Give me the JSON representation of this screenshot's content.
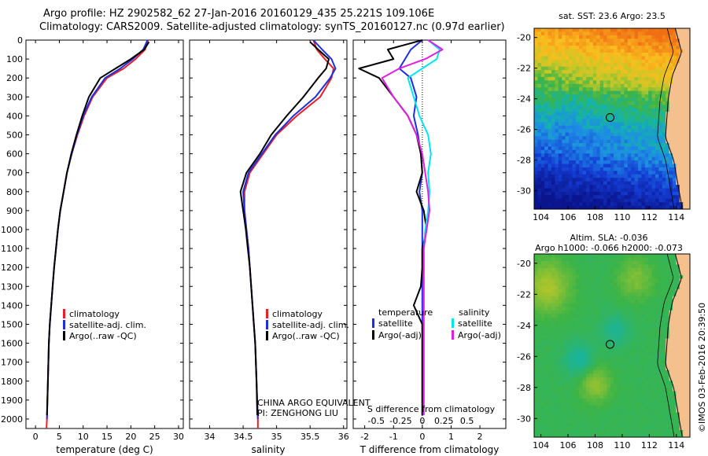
{
  "header": {
    "line1": "Argo profile: HZ 2902582_62 27-Jan-2016 20160129_435 25.221S 109.106E",
    "line2": "Climatology: CARS2009. Satellite-adjusted climatology: synTS_20160127.nc (0.97d earlier)"
  },
  "credits": {
    "line1": "CHINA ARGO EQUIVALENT",
    "line2": "PI: ZENGHONG LIU",
    "watermark": "©IMOS 03-Feb-2016 20:39:50"
  },
  "colors": {
    "climatology": "#e8202a",
    "satellite": "#1e2ee0",
    "argo": "#000000",
    "salinity_satellite": "#00e6f0",
    "salinity_argo": "#e020e0",
    "land": "#f4c08e"
  },
  "chart_data": [
    {
      "type": "line",
      "name": "temperature-profile",
      "xlabel": "temperature (deg C)",
      "ylabel": "",
      "xlim": [
        -2,
        31
      ],
      "ylim": [
        2050,
        0
      ],
      "xticks": [
        "0",
        "5",
        "10",
        "15",
        "20",
        "25",
        "30"
      ],
      "xtick_values": [
        0,
        5,
        10,
        15,
        20,
        25,
        30
      ],
      "yticks": [
        "0",
        "100",
        "200",
        "300",
        "400",
        "500",
        "600",
        "700",
        "800",
        "900",
        "1000",
        "1100",
        "1200",
        "1300",
        "1400",
        "1500",
        "1600",
        "1700",
        "1800",
        "1900",
        "2000"
      ],
      "ytick_values": [
        0,
        100,
        200,
        300,
        400,
        500,
        600,
        700,
        800,
        900,
        1000,
        1100,
        1200,
        1300,
        1400,
        1500,
        1600,
        1700,
        1800,
        1900,
        2000
      ],
      "legend": [
        "climatology",
        "satellite-adj. clim.",
        "Argo(..raw -QC)"
      ],
      "series": [
        {
          "name": "climatology",
          "color": "#e8202a",
          "x": [
            23.6,
            23.0,
            21.0,
            18.5,
            15.0,
            12.0,
            10.2,
            8.8,
            7.6,
            6.6,
            5.9,
            5.2,
            4.7,
            4.3,
            3.9,
            3.6,
            3.3,
            3.0,
            2.8,
            2.6,
            2.4,
            2.3
          ],
          "y": [
            0,
            50,
            100,
            150,
            200,
            300,
            400,
            500,
            600,
            700,
            800,
            900,
            1000,
            1100,
            1200,
            1300,
            1400,
            1500,
            1600,
            1800,
            2000,
            2050
          ]
        },
        {
          "name": "satellite-adj. clim.",
          "color": "#1e2ee0",
          "x": [
            23.5,
            22.6,
            20.4,
            17.8,
            14.6,
            11.8,
            10.0,
            8.7,
            7.6,
            6.6,
            5.9,
            5.2,
            4.7,
            4.3,
            3.9,
            3.6,
            3.3,
            3.0,
            2.8,
            2.6,
            2.4
          ],
          "y": [
            0,
            50,
            100,
            150,
            200,
            300,
            400,
            500,
            600,
            700,
            800,
            900,
            1000,
            1100,
            1200,
            1300,
            1400,
            1500,
            1600,
            1800,
            2000
          ]
        },
        {
          "name": "Argo(..raw -QC)",
          "color": "#000000",
          "x": [
            23.8,
            22.8,
            20.0,
            16.8,
            13.6,
            11.2,
            9.8,
            8.6,
            7.5,
            6.6,
            5.9,
            5.2,
            4.7,
            4.3,
            3.9,
            3.6,
            3.3,
            3.0,
            2.8,
            2.6,
            2.4
          ],
          "y": [
            10,
            50,
            100,
            150,
            200,
            300,
            400,
            500,
            600,
            700,
            800,
            900,
            1000,
            1100,
            1200,
            1300,
            1400,
            1500,
            1600,
            1800,
            1980
          ]
        }
      ]
    },
    {
      "type": "line",
      "name": "salinity-profile",
      "xlabel": "salinity",
      "ylabel": "",
      "xlim": [
        33.7,
        36.05
      ],
      "ylim": [
        2050,
        0
      ],
      "xticks": [
        "34",
        "34.5",
        "35",
        "35.5",
        "36"
      ],
      "xtick_values": [
        34,
        34.5,
        35,
        35.5,
        36
      ],
      "legend": [
        "climatology",
        "satellite-adj. clim.",
        "Argo(..raw -QC)"
      ],
      "series": [
        {
          "name": "climatology",
          "color": "#e8202a",
          "x": [
            35.55,
            35.6,
            35.72,
            35.85,
            35.82,
            35.65,
            35.3,
            35.0,
            34.8,
            34.6,
            34.52,
            34.52,
            34.55,
            34.58,
            34.6,
            34.62,
            34.64,
            34.66,
            34.68,
            34.7,
            34.72,
            34.72
          ],
          "y": [
            0,
            50,
            100,
            150,
            200,
            300,
            400,
            500,
            600,
            700,
            800,
            900,
            1000,
            1100,
            1200,
            1300,
            1400,
            1500,
            1600,
            1800,
            2000,
            2050
          ]
        },
        {
          "name": "satellite-adj. clim.",
          "color": "#1e2ee0",
          "x": [
            35.55,
            35.68,
            35.82,
            35.88,
            35.8,
            35.58,
            35.25,
            34.98,
            34.78,
            34.58,
            34.5,
            34.52,
            34.55,
            34.58,
            34.6,
            34.62,
            34.64,
            34.66,
            34.68,
            34.7,
            34.72
          ],
          "y": [
            0,
            50,
            100,
            150,
            200,
            300,
            400,
            500,
            600,
            700,
            800,
            900,
            1000,
            1100,
            1200,
            1300,
            1400,
            1500,
            1600,
            1800,
            2000
          ]
        },
        {
          "name": "Argo(..raw -QC)",
          "color": "#000000",
          "x": [
            35.5,
            35.62,
            35.78,
            35.74,
            35.62,
            35.4,
            35.15,
            34.92,
            34.75,
            34.55,
            34.46,
            34.5,
            34.54,
            34.57,
            34.6,
            34.62,
            34.64,
            34.66,
            34.68,
            34.7,
            34.71
          ],
          "y": [
            10,
            50,
            100,
            150,
            200,
            300,
            400,
            500,
            600,
            700,
            800,
            900,
            1000,
            1100,
            1200,
            1300,
            1400,
            1500,
            1600,
            1800,
            1980
          ]
        }
      ]
    },
    {
      "type": "line",
      "name": "difference-profile",
      "xlabel": "T difference from climatology",
      "xlabel_top": "S difference from climatology",
      "xlim": [
        -2.4,
        2.9
      ],
      "ylim": [
        2050,
        0
      ],
      "xticks": [
        "-2",
        "-1",
        "0",
        "1",
        "2"
      ],
      "xtick_values": [
        -2,
        -1,
        0,
        1,
        2
      ],
      "sticks": [
        "-0.5",
        "-0.25",
        "0",
        "0.25",
        "0.5"
      ],
      "stick_positions": [
        -1.6,
        -0.75,
        0.0,
        0.75,
        1.55
      ],
      "legend_left_title": "temperature",
      "legend_right_title": "salinity",
      "legend": [
        "satellite",
        "Argo(-adj)",
        "satellite",
        "Argo(-adj)"
      ],
      "series": [
        {
          "name": "satellite",
          "color": "#1e2ee0",
          "x": [
            0.0,
            -0.4,
            -0.6,
            -0.8,
            -0.4,
            -0.2,
            -0.3,
            -0.15,
            -0.05,
            0.0,
            -0.1,
            0.0,
            0.0,
            0.0,
            0.0,
            0.0,
            0.0,
            0.0,
            0.0,
            0.0
          ],
          "y": [
            0,
            50,
            100,
            150,
            200,
            300,
            400,
            500,
            600,
            700,
            800,
            900,
            1000,
            1100,
            1200,
            1300,
            1400,
            1500,
            1600,
            1980
          ]
        },
        {
          "name": "Argo(-adj)",
          "color": "#000000",
          "x": [
            0.0,
            -1.2,
            -1.0,
            -2.2,
            -1.5,
            -1.0,
            -0.5,
            -0.2,
            -0.05,
            0.0,
            -0.2,
            0.05,
            0.15,
            0.0,
            0.0,
            -0.05,
            -0.3,
            0.0,
            0.0,
            0.0
          ],
          "y": [
            0,
            50,
            100,
            150,
            200,
            300,
            400,
            500,
            600,
            700,
            800,
            900,
            1000,
            1100,
            1200,
            1300,
            1400,
            1500,
            1600,
            1980
          ]
        },
        {
          "name": "satellite",
          "color": "#00e6f0",
          "x": [
            0.2,
            0.6,
            0.5,
            0.0,
            -0.5,
            -0.3,
            -0.1,
            0.2,
            0.3,
            0.2,
            0.25,
            0.2,
            0.1,
            0.05,
            0.05,
            0.05,
            0.05,
            0.05,
            0.05,
            0.05
          ],
          "y": [
            0,
            50,
            100,
            150,
            200,
            300,
            400,
            500,
            600,
            700,
            800,
            900,
            1000,
            1100,
            1200,
            1300,
            1400,
            1500,
            1600,
            1980
          ]
        },
        {
          "name": "Argo(-adj)",
          "color": "#e020e0",
          "x": [
            0.2,
            0.7,
            0.1,
            -0.8,
            -1.4,
            -1.0,
            -0.5,
            -0.2,
            0.0,
            0.1,
            0.2,
            0.25,
            0.15,
            0.05,
            0.05,
            0.05,
            0.05,
            0.05,
            0.05,
            0.05
          ],
          "y": [
            0,
            50,
            100,
            150,
            200,
            300,
            400,
            500,
            600,
            700,
            800,
            900,
            1000,
            1100,
            1200,
            1300,
            1400,
            1500,
            1600,
            1980
          ]
        }
      ]
    },
    {
      "type": "heatmap",
      "name": "sst-map",
      "title": "sat. SST: 23.6  Argo: 23.5",
      "xlim": [
        103.5,
        115
      ],
      "ylim": [
        -31.2,
        -19.4
      ],
      "xticks": [
        "104",
        "106",
        "108",
        "110",
        "112",
        "114"
      ],
      "xtick_values": [
        104,
        106,
        108,
        110,
        112,
        114
      ],
      "yticks": [
        "-20",
        "-22",
        "-24",
        "-26",
        "-28",
        "-30"
      ],
      "ytick_values": [
        -20,
        -22,
        -24,
        -26,
        -28,
        -30
      ],
      "marker": {
        "lon": 109.106,
        "lat": -25.221
      }
    },
    {
      "type": "heatmap",
      "name": "sla-map",
      "title": "Altim. SLA: -0.036",
      "subtitle": "Argo h1000: -0.066 h2000: -0.073",
      "xlim": [
        103.5,
        115
      ],
      "ylim": [
        -31.2,
        -19.4
      ],
      "xticks": [
        "104",
        "106",
        "108",
        "110",
        "112",
        "114"
      ],
      "xtick_values": [
        104,
        106,
        108,
        110,
        112,
        114
      ],
      "yticks": [
        "-20",
        "-22",
        "-24",
        "-26",
        "-28",
        "-30"
      ],
      "ytick_values": [
        -20,
        -22,
        -24,
        -26,
        -28,
        -30
      ],
      "marker": {
        "lon": 109.106,
        "lat": -25.221
      }
    }
  ]
}
